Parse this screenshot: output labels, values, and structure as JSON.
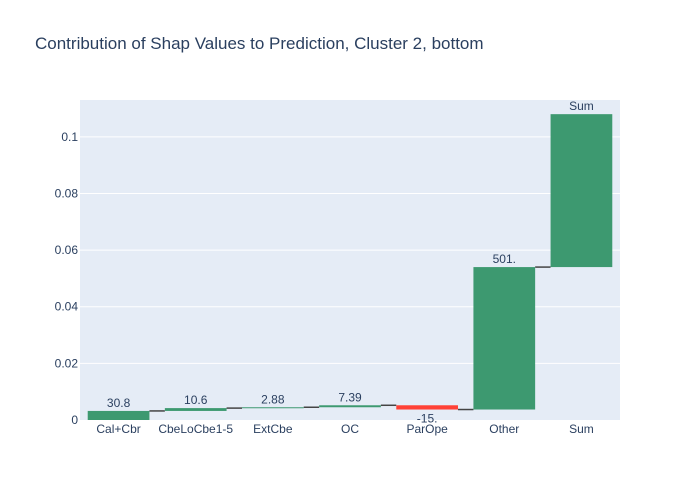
{
  "chart_data": {
    "type": "waterfall",
    "title": "Contribution of Shap Values to Prediction, Cluster 2, bottom",
    "xlabel": "",
    "ylabel": "",
    "ylim": [
      0,
      0.113
    ],
    "yticks": [
      {
        "value": 0,
        "label": "0"
      },
      {
        "value": 0.02,
        "label": "0.02"
      },
      {
        "value": 0.04,
        "label": "0.04"
      },
      {
        "value": 0.06,
        "label": "0.06"
      },
      {
        "value": 0.08,
        "label": "0.08"
      },
      {
        "value": 0.1,
        "label": "0.1"
      }
    ],
    "grid": true,
    "colors": {
      "increase": "#3d9970",
      "decrease": "#ff4136",
      "total": "#3d9970",
      "connector": "#444444",
      "plot_bg": "#e5ecf6",
      "grid": "#ffffff",
      "text": "#2a3f5f"
    },
    "steps": [
      {
        "category": "Cal+Cbr",
        "base": 0,
        "end": 0.0032,
        "kind": "increase",
        "label": "30.8"
      },
      {
        "category": "CbeLoCbe1-5",
        "base": 0.0032,
        "end": 0.0042,
        "kind": "increase",
        "label": "10.6"
      },
      {
        "category": "ExtCbe",
        "base": 0.0042,
        "end": 0.0045,
        "kind": "increase",
        "label": "2.88"
      },
      {
        "category": "OC",
        "base": 0.0045,
        "end": 0.0052,
        "kind": "increase",
        "label": "7.39"
      },
      {
        "category": "ParOpe",
        "base": 0.0052,
        "end": 0.0037,
        "kind": "decrease",
        "label": "-15."
      },
      {
        "category": "Other",
        "base": 0.0037,
        "end": 0.054,
        "kind": "increase",
        "label": "501."
      },
      {
        "category": "Sum",
        "base": 0.054,
        "end": 0.108,
        "kind": "total",
        "label": "Sum"
      }
    ]
  }
}
